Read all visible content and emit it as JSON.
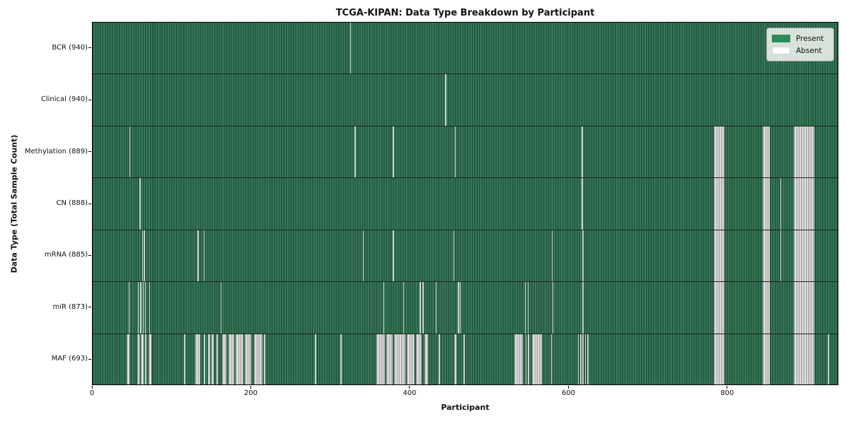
{
  "colors": {
    "present": "#2e8b57",
    "present_stripe_dark": "#1e4f38",
    "present_stripe_mid": "#2c6a4b",
    "present_stripe_light": "#3e7f5d",
    "absent": "#ffffff",
    "absent_thin_stripe": "#ccd1cc",
    "absent_block_gray": "#c5c5c5",
    "row_separator": "#1c241c",
    "axis_spine": "#000000",
    "legend_background": "#f5f8f5",
    "legend_border": "#9a9a9a"
  },
  "chart_data": {
    "type": "heatmap",
    "title": "TCGA-KIPAN: Data Type Breakdown by Participant",
    "xlabel": "Participant",
    "ylabel": "Data Type (Total Sample Count)",
    "x_range": [
      0,
      940
    ],
    "x_ticks": [
      0,
      200,
      400,
      600,
      800
    ],
    "grid": false,
    "legend_position": "upper right",
    "legend": [
      {
        "label": "Present",
        "color": "#2e8b57"
      },
      {
        "label": "Absent",
        "color": "#ffffff"
      }
    ],
    "cell_values": "present=1, absent=0; absent_ranges given in participant index units along x",
    "rows": [
      {
        "label": "BCR (940)",
        "data_type": "BCR",
        "total_samples": 940,
        "absent_ranges": [
          [
            324,
            325.3
          ]
        ]
      },
      {
        "label": "Clinical (940)",
        "data_type": "Clinical",
        "total_samples": 940,
        "absent_ranges": [
          [
            444,
            445.3
          ]
        ]
      },
      {
        "label": "Methylation (889)",
        "data_type": "Methylation",
        "total_samples": 889,
        "absent_ranges": [
          [
            46,
            47.3
          ],
          [
            330,
            331.3
          ],
          [
            378,
            379.3
          ],
          [
            456,
            457.3
          ],
          [
            616,
            617.3
          ],
          [
            782,
            796
          ],
          [
            844,
            853
          ],
          [
            883,
            909
          ]
        ]
      },
      {
        "label": "CN (888)",
        "data_type": "CN",
        "total_samples": 888,
        "absent_ranges": [
          [
            59,
            60.3
          ],
          [
            616,
            617.3
          ],
          [
            866,
            867.3
          ],
          [
            782,
            796
          ],
          [
            844,
            853
          ],
          [
            883,
            909
          ]
        ]
      },
      {
        "label": "mRNA (885)",
        "data_type": "mRNA",
        "total_samples": 885,
        "absent_ranges": [
          [
            62,
            63.2
          ],
          [
            64.5,
            65.7
          ],
          [
            132,
            133.3
          ],
          [
            139.5,
            140.8
          ],
          [
            340,
            341.3
          ],
          [
            378,
            379.3
          ],
          [
            454,
            455.3
          ],
          [
            578,
            579.3
          ],
          [
            617,
            618.3
          ],
          [
            866,
            867.3
          ],
          [
            782,
            796
          ],
          [
            844,
            853
          ],
          [
            883,
            909
          ]
        ]
      },
      {
        "label": "miR (873)",
        "data_type": "miR",
        "total_samples": 873,
        "absent_ranges": [
          [
            45,
            46.3
          ],
          [
            57,
            58.2
          ],
          [
            60,
            61.2
          ],
          [
            63,
            64.2
          ],
          [
            66,
            67.2
          ],
          [
            71,
            72.3
          ],
          [
            161,
            162.3
          ],
          [
            366,
            367.3
          ],
          [
            391,
            392.3
          ],
          [
            412,
            413.3
          ],
          [
            415.5,
            416.8
          ],
          [
            432,
            433.3
          ],
          [
            460,
            461.2
          ],
          [
            462.5,
            463.7
          ],
          [
            544,
            545.3
          ],
          [
            548,
            549.3
          ],
          [
            579,
            580.3
          ],
          [
            617,
            618.3
          ],
          [
            782,
            796
          ],
          [
            844,
            853
          ],
          [
            883,
            909
          ]
        ]
      },
      {
        "label": "MAF (693)",
        "data_type": "MAF",
        "total_samples": 693,
        "absent_ranges": [
          [
            43,
            46
          ],
          [
            56,
            59
          ],
          [
            61,
            64
          ],
          [
            66,
            68
          ],
          [
            70,
            74
          ],
          [
            115,
            116.5
          ],
          [
            129,
            135
          ],
          [
            140,
            142
          ],
          [
            145,
            147.5
          ],
          [
            150,
            152
          ],
          [
            156,
            158
          ],
          [
            163,
            168
          ],
          [
            171,
            178
          ],
          [
            180,
            190
          ],
          [
            192,
            200
          ],
          [
            203,
            214
          ],
          [
            216,
            217.5
          ],
          [
            280,
            282
          ],
          [
            312,
            314
          ],
          [
            357,
            368
          ],
          [
            370,
            378
          ],
          [
            380,
            394
          ],
          [
            396,
            405
          ],
          [
            407,
            414
          ],
          [
            418,
            422
          ],
          [
            436,
            437.5
          ],
          [
            455,
            458
          ],
          [
            467,
            469
          ],
          [
            531,
            542
          ],
          [
            545,
            546.5
          ],
          [
            548,
            549.5
          ],
          [
            553,
            566
          ],
          [
            577,
            578.3
          ],
          [
            611,
            612.3
          ],
          [
            614,
            615.3
          ],
          [
            617,
            618.3
          ],
          [
            620,
            621.3
          ],
          [
            623,
            624.3
          ],
          [
            782,
            796
          ],
          [
            844,
            853
          ],
          [
            883,
            909
          ],
          [
            926,
            927.5
          ]
        ]
      }
    ]
  }
}
